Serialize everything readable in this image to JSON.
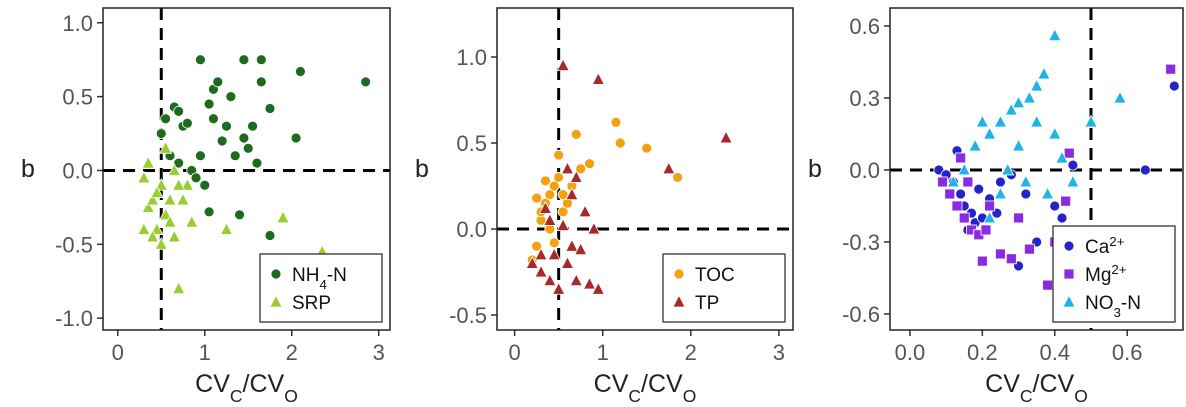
{
  "chart_data": [
    {
      "type": "scatter",
      "y_label": "b",
      "x_label": [
        {
          "text": "CV"
        },
        {
          "text": "C",
          "script": "sub"
        },
        {
          "text": "/CV"
        },
        {
          "text": "Q",
          "script": "sub"
        }
      ],
      "xlim": [
        -0.17,
        3.13
      ],
      "ylim": [
        -1.08,
        1.1
      ],
      "xticks": [
        0,
        1,
        2,
        3
      ],
      "yticks": [
        {
          "value": 1,
          "label": "1.0"
        },
        {
          "value": 0.5,
          "label": "0.5"
        },
        {
          "value": 0,
          "label": "0.0"
        },
        {
          "value": -0.5,
          "label": "-0.5"
        },
        {
          "value": -1,
          "label": "-1.0"
        }
      ],
      "vline": 0.5,
      "hline": 0,
      "legend": "lower right",
      "series": [
        {
          "name": [
            {
              "text": "NH"
            },
            {
              "text": "4",
              "script": "sub"
            },
            {
              "text": "-N"
            }
          ],
          "color": "#1e6b1e",
          "marker": "circle",
          "x": [
            0.95,
            1.1,
            1.05,
            1.15,
            1.3,
            1.45,
            1.65,
            1.55,
            1.75,
            2.1,
            2.85,
            2.05,
            1.75,
            1.4,
            0.55,
            0.65,
            0.7,
            0.75,
            0.8,
            0.6,
            0.7,
            0.85,
            0.9,
            1.0,
            1.05,
            0.5,
            1.2,
            1.35,
            1.5,
            1.6,
            0.95,
            1.1,
            1.25,
            1.45,
            1.65
          ],
          "values": [
            0.75,
            0.55,
            0.45,
            0.6,
            0.5,
            0.75,
            0.75,
            0.3,
            0.42,
            0.67,
            0.6,
            0.22,
            -0.44,
            -0.3,
            0.35,
            0.43,
            0.4,
            0.3,
            0.32,
            0.1,
            0.05,
            0.0,
            -0.05,
            -0.1,
            -0.28,
            0.25,
            0.2,
            0.1,
            0.15,
            0.05,
            0.1,
            0.35,
            0.3,
            0.22,
            0.6
          ]
        },
        {
          "name": [
            {
              "text": "SRP"
            }
          ],
          "color": "#9acd32",
          "marker": "triangle",
          "x": [
            0.3,
            0.35,
            0.4,
            0.45,
            0.3,
            0.5,
            0.55,
            0.6,
            0.65,
            0.7,
            0.75,
            0.8,
            0.85,
            0.5,
            0.45,
            0.35,
            0.6,
            0.7,
            1.25,
            1.9,
            2.35,
            0.55,
            0.4,
            0.65
          ],
          "values": [
            -0.05,
            -0.25,
            -0.2,
            -0.4,
            -0.4,
            -0.1,
            -0.3,
            -0.35,
            -0.45,
            -0.8,
            -0.2,
            -0.1,
            -0.35,
            -0.5,
            -0.15,
            0.05,
            -0.2,
            -0.1,
            -0.4,
            -0.32,
            -0.55,
            0.15,
            -0.45,
            0.0
          ]
        }
      ]
    },
    {
      "type": "scatter",
      "y_label": "b",
      "x_label": [
        {
          "text": "CV"
        },
        {
          "text": "C",
          "script": "sub"
        },
        {
          "text": "/CV"
        },
        {
          "text": "Q",
          "script": "sub"
        }
      ],
      "xlim": [
        -0.2,
        3.16
      ],
      "ylim": [
        -0.587,
        1.285
      ],
      "xticks": [
        0,
        1,
        2,
        3
      ],
      "yticks": [
        {
          "value": 1,
          "label": "1.0"
        },
        {
          "value": 0.5,
          "label": "0.5"
        },
        {
          "value": 0,
          "label": "0.0"
        },
        -0.5
      ],
      "vline": 0.5,
      "hline": 0,
      "legend": "lower right",
      "series": [
        {
          "name": [
            {
              "text": "TOC"
            }
          ],
          "color": "#f5a00f",
          "marker": "circle",
          "x": [
            0.2,
            0.25,
            0.3,
            0.35,
            0.4,
            0.45,
            0.5,
            0.55,
            0.6,
            0.7,
            0.75,
            0.85,
            1.15,
            1.2,
            1.5,
            1.85,
            0.3,
            0.4,
            0.5,
            0.65,
            0.35,
            0.45,
            0.55,
            0.25
          ],
          "values": [
            -0.18,
            -0.1,
            0.05,
            0.15,
            0.2,
            0.25,
            0.3,
            0.1,
            0.15,
            0.55,
            0.35,
            0.38,
            0.62,
            0.5,
            0.47,
            0.3,
            0.1,
            0.0,
            0.43,
            0.25,
            0.28,
            -0.08,
            0.2,
            0.18
          ]
        },
        {
          "name": [
            {
              "text": "TP"
            }
          ],
          "color": "#a52a2a",
          "marker": "triangle",
          "x": [
            0.55,
            0.95,
            2.4,
            1.75,
            0.2,
            0.3,
            0.4,
            0.5,
            0.6,
            0.7,
            0.85,
            0.95,
            0.3,
            0.45,
            0.65,
            0.75,
            0.9,
            0.35,
            0.4,
            0.55,
            0.65,
            0.7,
            0.8,
            0.6
          ],
          "values": [
            0.95,
            0.87,
            0.53,
            0.35,
            -0.2,
            -0.25,
            -0.3,
            -0.35,
            -0.2,
            -0.3,
            -0.32,
            -0.35,
            -0.15,
            -0.15,
            -0.1,
            -0.12,
            0.0,
            0.12,
            0.05,
            0.02,
            0.2,
            0.3,
            0.1,
            0.35
          ]
        }
      ]
    },
    {
      "type": "scatter",
      "y_label": "b",
      "x_label": [
        {
          "text": "CV"
        },
        {
          "text": "C",
          "script": "sub"
        },
        {
          "text": "/CV"
        },
        {
          "text": "Q",
          "script": "sub"
        }
      ],
      "xlim": [
        -0.055,
        0.754
      ],
      "ylim": [
        -0.667,
        0.675
      ],
      "xticks": [
        {
          "value": 0,
          "label": "0.0"
        },
        0.2,
        0.4,
        0.6
      ],
      "yticks": [
        0.6,
        0.3,
        {
          "value": 0,
          "label": "0.0"
        },
        -0.3,
        -0.6
      ],
      "vline": 0.5,
      "hline": 0,
      "legend": "lower right",
      "series": [
        {
          "name": [
            {
              "text": "Ca"
            },
            {
              "text": "2+",
              "script": "super"
            }
          ],
          "color": "#2323c8",
          "marker": "circle",
          "x": [
            0.08,
            0.1,
            0.12,
            0.14,
            0.15,
            0.17,
            0.18,
            0.2,
            0.22,
            0.25,
            0.28,
            0.3,
            0.32,
            0.35,
            0.4,
            0.45,
            0.73,
            0.65,
            0.13,
            0.16,
            0.19,
            0.24,
            0.42
          ],
          "values": [
            0.0,
            -0.02,
            -0.05,
            -0.1,
            -0.15,
            -0.18,
            -0.22,
            -0.2,
            -0.12,
            -0.05,
            -0.02,
            -0.4,
            -0.1,
            -0.3,
            -0.15,
            0.02,
            0.35,
            0.0,
            0.08,
            -0.25,
            -0.08,
            -0.18,
            -0.2
          ]
        },
        {
          "name": [
            {
              "text": "Mg"
            },
            {
              "text": "2+",
              "script": "super"
            }
          ],
          "color": "#8a2be2",
          "marker": "square",
          "x": [
            0.09,
            0.11,
            0.13,
            0.15,
            0.17,
            0.19,
            0.21,
            0.2,
            0.25,
            0.28,
            0.33,
            0.38,
            0.43,
            0.44,
            0.72,
            0.16,
            0.22,
            0.14,
            0.4,
            0.3
          ],
          "values": [
            -0.05,
            -0.1,
            -0.15,
            -0.2,
            -0.25,
            -0.27,
            -0.25,
            -0.38,
            -0.35,
            -0.37,
            -0.33,
            -0.48,
            -0.13,
            0.07,
            0.42,
            -0.05,
            -0.15,
            0.05,
            -0.3,
            -0.2
          ]
        },
        {
          "name": [
            {
              "text": "NO"
            },
            {
              "text": "3",
              "script": "sub"
            },
            {
              "text": "-N"
            }
          ],
          "color": "#1fb4e8",
          "marker": "triangle",
          "x": [
            0.4,
            0.35,
            0.37,
            0.33,
            0.3,
            0.28,
            0.25,
            0.22,
            0.2,
            0.18,
            0.15,
            0.12,
            0.5,
            0.58,
            0.35,
            0.4,
            0.42,
            0.45,
            0.3,
            0.27,
            0.25,
            0.22,
            0.38,
            0.32
          ],
          "values": [
            0.56,
            0.35,
            0.4,
            0.3,
            0.28,
            0.25,
            0.2,
            0.15,
            0.2,
            0.1,
            0.0,
            -0.05,
            0.2,
            0.3,
            0.2,
            0.15,
            0.05,
            -0.05,
            0.1,
            0.0,
            -0.1,
            -0.2,
            -0.1,
            -0.05
          ]
        }
      ]
    }
  ]
}
